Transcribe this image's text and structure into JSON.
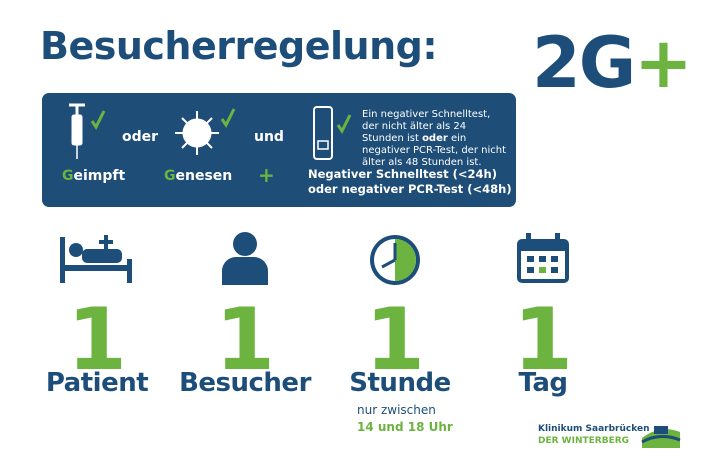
{
  "header": {
    "title": "Besucherregelung:",
    "badge": "2G",
    "badge_plus": "+"
  },
  "panel": {
    "sep_1": "oder",
    "sep_2": "und",
    "item_1": "Geimpft",
    "item_2": "Genesen",
    "plus": "+",
    "note": [
      "Ein negativer Schnelltest, der nicht älter als 24 Stunden ist ",
      "oder",
      " ein negativer PCR-Test, der nicht älter als 48 Stunden ist."
    ],
    "test_lines": [
      "Negativer Schnelltest (<24h)",
      "oder negativer PCR-Test (<48h)"
    ]
  },
  "rules": [
    {
      "count": "1",
      "label": "Patient"
    },
    {
      "count": "1",
      "label": "Besucher"
    },
    {
      "count": "1",
      "label": "Stunde",
      "note": "nur zwischen",
      "time": "14 und 18 Uhr"
    },
    {
      "count": "1",
      "label": "Tag"
    }
  ],
  "logo": {
    "name": "Klinikum Saarbrücken",
    "sub": "DER WINTERBERG"
  }
}
